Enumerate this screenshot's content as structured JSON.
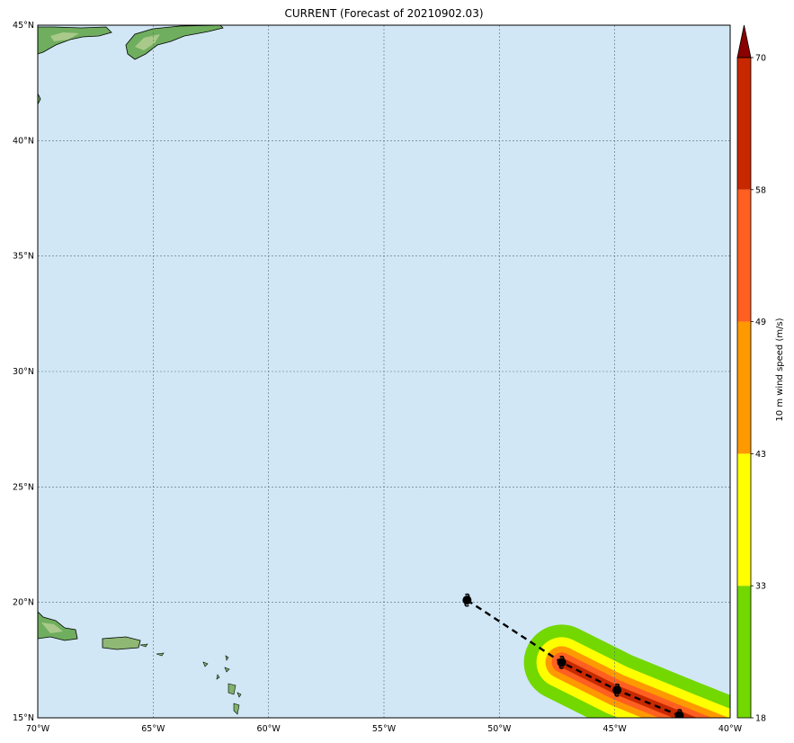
{
  "title": "CURRENT (Forecast of 20210902.03)",
  "map": {
    "lon_range": [
      -70,
      -40
    ],
    "lat_range": [
      15,
      45
    ],
    "lon_ticks": [
      {
        "value": -70,
        "label": "70°W"
      },
      {
        "value": -65,
        "label": "65°W"
      },
      {
        "value": -60,
        "label": "60°W"
      },
      {
        "value": -55,
        "label": "55°W"
      },
      {
        "value": -50,
        "label": "50°W"
      },
      {
        "value": -45,
        "label": "45°W"
      },
      {
        "value": -40,
        "label": "40°W"
      }
    ],
    "lat_ticks": [
      {
        "value": 15,
        "label": "15°N"
      },
      {
        "value": 20,
        "label": "20°N"
      },
      {
        "value": 25,
        "label": "25°N"
      },
      {
        "value": 30,
        "label": "30°N"
      },
      {
        "value": 35,
        "label": "35°N"
      },
      {
        "value": 40,
        "label": "40°N"
      },
      {
        "value": 45,
        "label": "45°N"
      }
    ],
    "grid": true,
    "ocean_color": "#d1e7f5",
    "land_color": "#7fb36a",
    "track": {
      "style": "dashed",
      "points": [
        {
          "lon": -51.4,
          "lat": 20.1
        },
        {
          "lon": -47.3,
          "lat": 17.4
        },
        {
          "lon": -44.9,
          "lat": 16.2
        },
        {
          "lon": -42.2,
          "lat": 15.1
        }
      ]
    }
  },
  "colorbar": {
    "label": "10 m wind speed (m/s)",
    "bands": [
      {
        "from": 18,
        "to": 33,
        "color": "#73d800"
      },
      {
        "from": 33,
        "to": 43,
        "color": "#ffff00"
      },
      {
        "from": 43,
        "to": 49,
        "color": "#ff9900"
      },
      {
        "from": 49,
        "to": 58,
        "color": "#ff5f20"
      },
      {
        "from": 58,
        "to": 70,
        "color": "#c82800"
      }
    ],
    "extend_color": "#8b0000",
    "ticks": [
      "18",
      "33",
      "43",
      "49",
      "58",
      "70"
    ]
  }
}
